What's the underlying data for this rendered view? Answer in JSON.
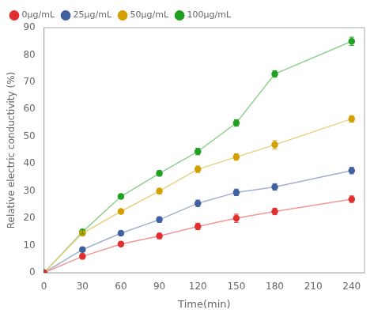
{
  "chart_data": {
    "type": "line",
    "xlabel": "Time(min)",
    "ylabel": "Relative electric conductivity (%)",
    "x": [
      0,
      30,
      60,
      90,
      120,
      150,
      180,
      240
    ],
    "series": [
      {
        "name": "0μg/mL",
        "color": "#e03030",
        "values": [
          0,
          6.0,
          10.5,
          13.5,
          17.0,
          20.0,
          22.5,
          27.0
        ],
        "yerr": [
          0,
          1.0,
          0.8,
          1.0,
          1.2,
          1.5,
          1.2,
          1.2
        ]
      },
      {
        "name": "25μg/mL",
        "color": "#4060a0",
        "values": [
          0,
          8.5,
          14.5,
          19.5,
          25.5,
          29.5,
          31.5,
          37.5
        ],
        "yerr": [
          0,
          0.8,
          0.8,
          1.0,
          1.2,
          1.2,
          1.2,
          1.2
        ]
      },
      {
        "name": "50μg/mL",
        "color": "#d4a000",
        "values": [
          0,
          14.5,
          22.5,
          30.0,
          38.0,
          42.5,
          47.0,
          56.5
        ],
        "yerr": [
          0,
          0.8,
          0.8,
          1.0,
          1.2,
          1.2,
          1.5,
          1.2
        ]
      },
      {
        "name": "100μg/mL",
        "color": "#20a020",
        "values": [
          0,
          15.0,
          28.0,
          36.5,
          44.5,
          55.0,
          73.0,
          85.0
        ],
        "yerr": [
          0,
          0.8,
          0.8,
          1.0,
          1.2,
          1.2,
          1.2,
          1.5
        ]
      }
    ],
    "xlim": [
      0,
      250
    ],
    "xticks": [
      0,
      30,
      60,
      90,
      120,
      150,
      180,
      210,
      240
    ],
    "ylim": [
      0,
      90
    ],
    "yticks": [
      0,
      10,
      20,
      30,
      40,
      50,
      60,
      70,
      80,
      90
    ],
    "marker": "circle",
    "grid": false,
    "legend": "upper left"
  }
}
